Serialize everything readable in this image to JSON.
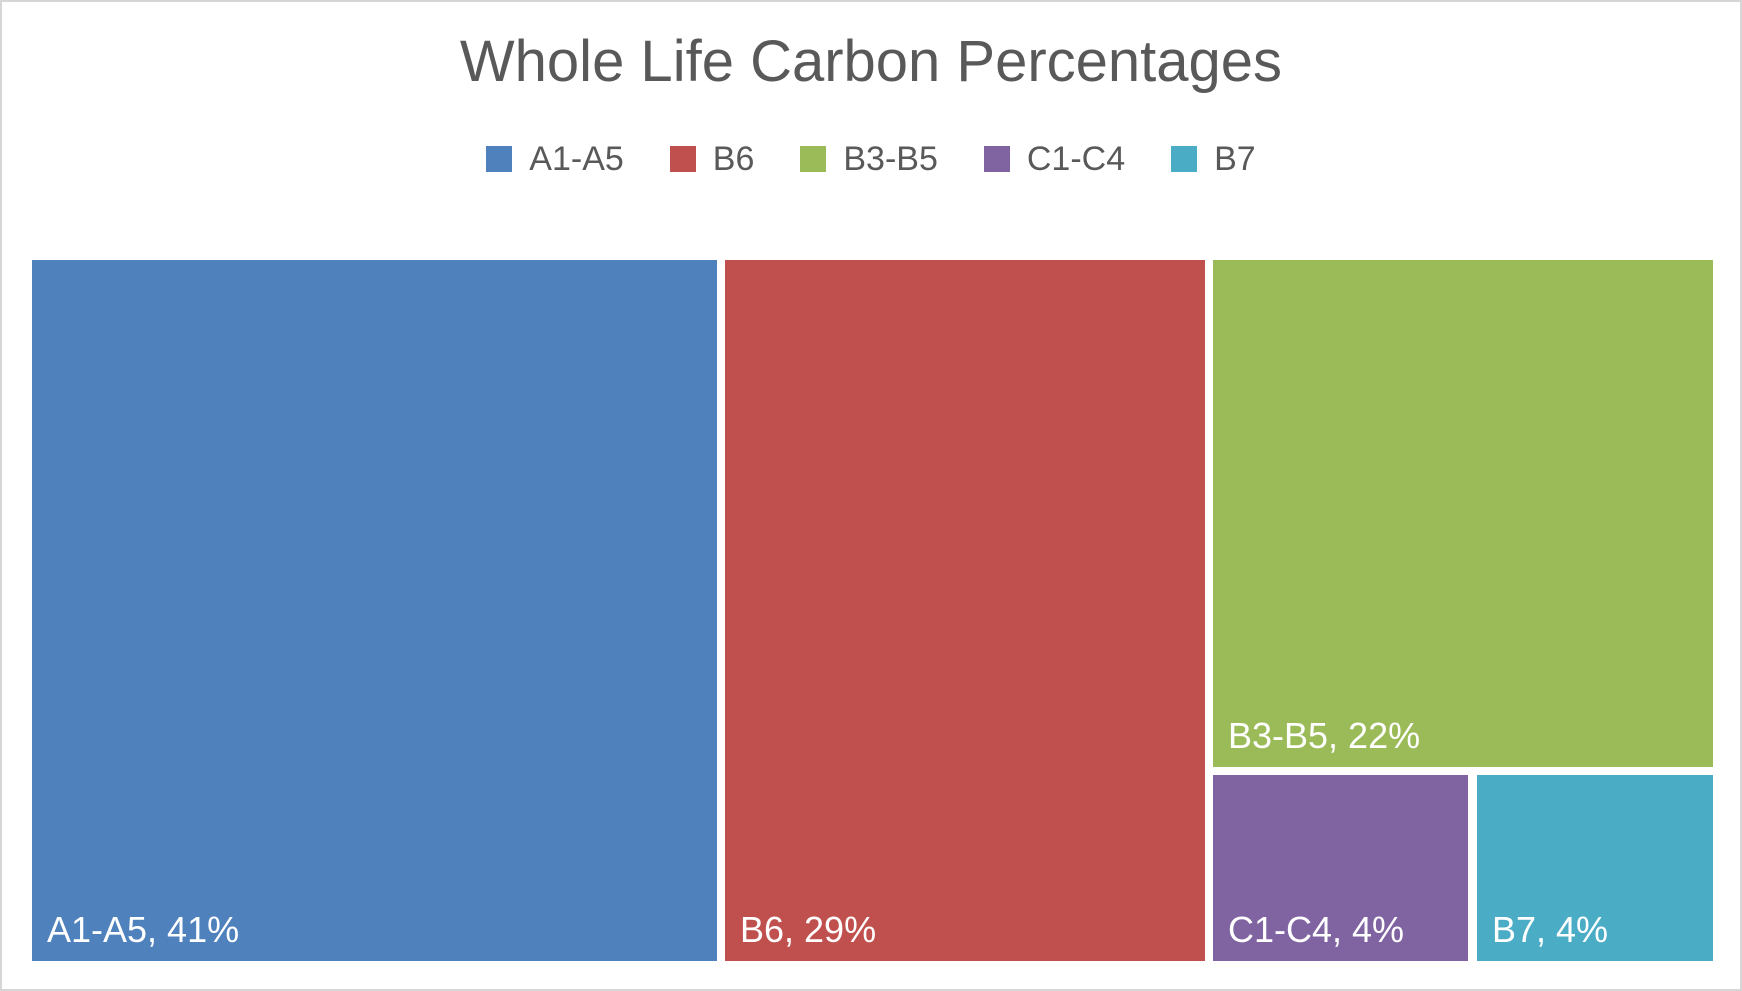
{
  "chart_data": {
    "type": "treemap",
    "title": "Whole Life Carbon Percentages",
    "units": "%",
    "legend_position": "top",
    "background_color": "#ffffff",
    "title_color": "#595959",
    "legend_text_color": "#595959",
    "data_label_color": "#ffffff",
    "series": [
      {
        "name": "A1-A5",
        "value": 41,
        "color": "#4F81BD",
        "data_label": "A1-A5, 41%"
      },
      {
        "name": "B6",
        "value": 29,
        "color": "#C0504D",
        "data_label": "B6, 29%"
      },
      {
        "name": "B3-B5",
        "value": 22,
        "color": "#9BBB59",
        "data_label": "B3-B5, 22%"
      },
      {
        "name": "C1-C4",
        "value": 4,
        "color": "#8064A2",
        "data_label": "C1-C4, 4%"
      },
      {
        "name": "B7",
        "value": 4,
        "color": "#4BACC6",
        "data_label": "B7, 4%"
      }
    ],
    "legend": [
      "A1-A5",
      "B6",
      "B3-B5",
      "C1-C4",
      "B7"
    ]
  }
}
